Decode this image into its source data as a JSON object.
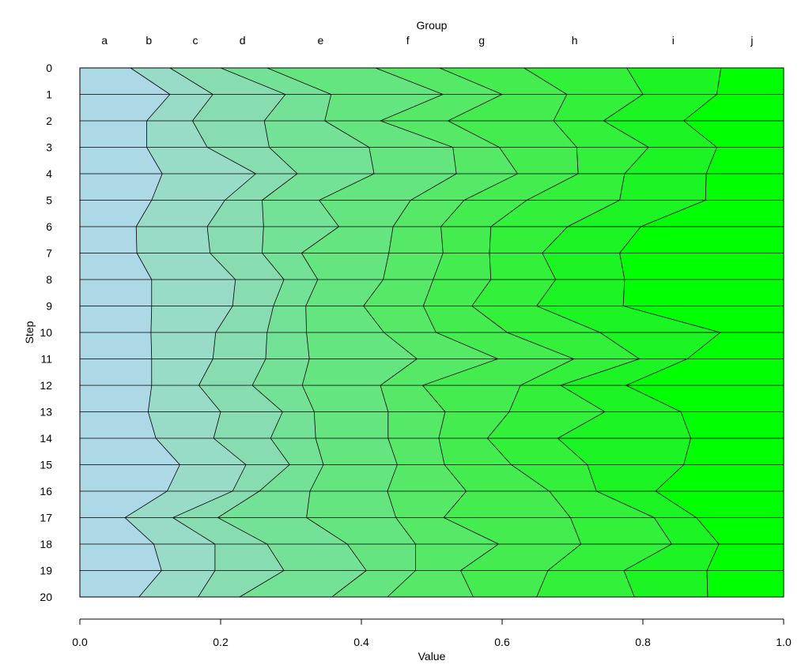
{
  "chart_data": {
    "type": "area",
    "subtype": "stacked-proportion (horizontal, steps top-to-bottom)",
    "title": "",
    "top_axis_label": "Group",
    "xlabel": "Value",
    "ylabel": "Step",
    "xlim": [
      0,
      1
    ],
    "x_ticks": [
      0,
      0.2,
      0.4,
      0.6,
      0.8,
      1
    ],
    "x_tick_labels": [
      "0.0",
      "0.2",
      "0.4",
      "0.6",
      "0.8",
      "1.0"
    ],
    "steps": [
      "0",
      "1",
      "2",
      "3",
      "4",
      "5",
      "6",
      "7",
      "8",
      "9",
      "10",
      "11",
      "12",
      "13",
      "14",
      "15",
      "16",
      "17",
      "18",
      "19",
      "20"
    ],
    "grid": false,
    "legend": "group letters across the top",
    "groups": [
      "a",
      "b",
      "c",
      "d",
      "e",
      "f",
      "g",
      "h",
      "i",
      "j"
    ],
    "group_label_positions": [
      0.035,
      0.098,
      0.164,
      0.231,
      0.342,
      0.466,
      0.571,
      0.703,
      0.843,
      0.955
    ],
    "colors": [
      "#add8e6",
      "#98dbc6",
      "#87ddaf",
      "#73e297",
      "#64e580",
      "#55e967",
      "#45ec50",
      "#33f03b",
      "#1cf423",
      "#00ff00"
    ],
    "boundaries": [
      [
        0.072,
        0.128,
        0.2,
        0.266,
        0.42,
        0.511,
        0.631,
        0.777,
        0.911
      ],
      [
        0.128,
        0.189,
        0.292,
        0.357,
        0.516,
        0.6,
        0.692,
        0.8,
        0.905
      ],
      [
        0.095,
        0.16,
        0.262,
        0.348,
        0.427,
        0.523,
        0.673,
        0.744,
        0.858
      ],
      [
        0.095,
        0.181,
        0.269,
        0.411,
        0.53,
        0.596,
        0.706,
        0.808,
        0.905
      ],
      [
        0.117,
        0.25,
        0.309,
        0.418,
        0.535,
        0.622,
        0.708,
        0.774,
        0.89
      ],
      [
        0.102,
        0.206,
        0.259,
        0.34,
        0.47,
        0.546,
        0.635,
        0.767,
        0.889
      ],
      [
        0.08,
        0.181,
        0.261,
        0.368,
        0.445,
        0.513,
        0.584,
        0.693,
        0.797
      ],
      [
        0.081,
        0.185,
        0.259,
        0.315,
        0.439,
        0.516,
        0.582,
        0.657,
        0.767
      ],
      [
        0.102,
        0.221,
        0.29,
        0.338,
        0.431,
        0.502,
        0.584,
        0.676,
        0.774
      ],
      [
        0.102,
        0.217,
        0.275,
        0.321,
        0.403,
        0.488,
        0.557,
        0.649,
        0.772
      ],
      [
        0.101,
        0.193,
        0.266,
        0.322,
        0.432,
        0.506,
        0.607,
        0.739,
        0.91
      ],
      [
        0.102,
        0.189,
        0.264,
        0.326,
        0.479,
        0.594,
        0.702,
        0.795,
        0.863
      ],
      [
        0.102,
        0.169,
        0.245,
        0.316,
        0.427,
        0.487,
        0.626,
        0.683,
        0.776
      ],
      [
        0.097,
        0.2,
        0.288,
        0.333,
        0.438,
        0.519,
        0.61,
        0.746,
        0.854
      ],
      [
        0.108,
        0.19,
        0.271,
        0.335,
        0.438,
        0.51,
        0.579,
        0.679,
        0.868
      ],
      [
        0.142,
        0.236,
        0.298,
        0.346,
        0.451,
        0.518,
        0.613,
        0.721,
        0.858
      ],
      [
        0.124,
        0.217,
        0.255,
        0.327,
        0.437,
        0.549,
        0.667,
        0.734,
        0.818
      ],
      [
        0.064,
        0.132,
        0.196,
        0.322,
        0.449,
        0.517,
        0.697,
        0.816,
        0.876
      ],
      [
        0.105,
        0.192,
        0.266,
        0.38,
        0.477,
        0.595,
        0.712,
        0.841,
        0.908
      ],
      [
        0.116,
        0.192,
        0.29,
        0.407,
        0.477,
        0.541,
        0.665,
        0.773,
        0.891
      ],
      [
        0.084,
        0.168,
        0.227,
        0.358,
        0.437,
        0.559,
        0.649,
        0.788,
        0.892
      ]
    ]
  }
}
